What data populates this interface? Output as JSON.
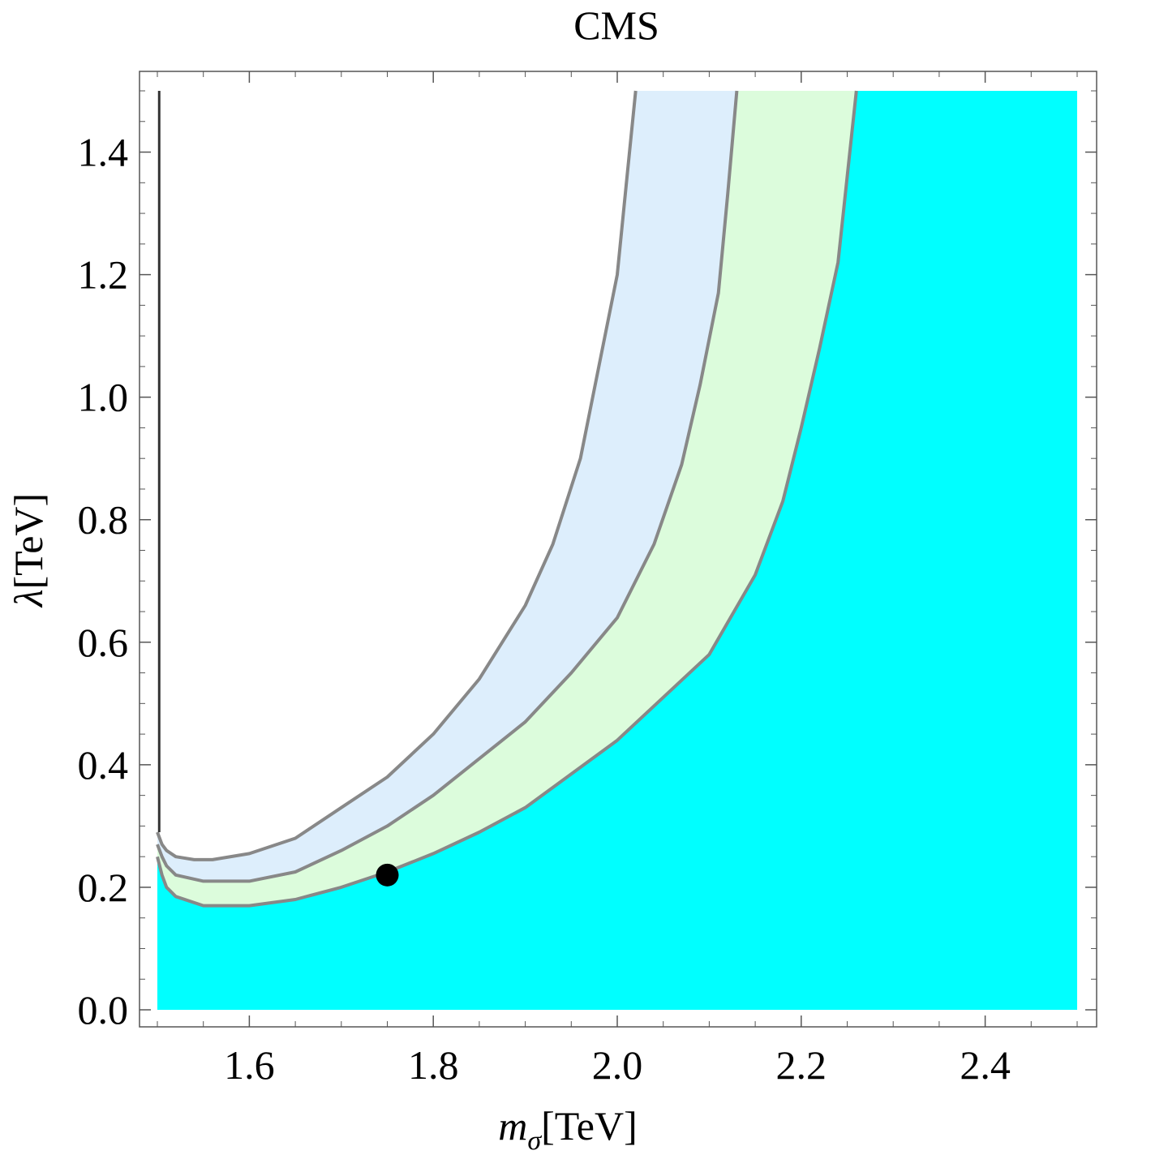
{
  "chart_data": {
    "type": "area",
    "title": "CMS",
    "xlabel": {
      "symbol": "m",
      "subscript": "σ",
      "unit": "[TeV]"
    },
    "ylabel": {
      "symbol": "λ",
      "unit": "[TeV]"
    },
    "xlim": [
      1.5,
      2.5
    ],
    "ylim": [
      0.0,
      1.5
    ],
    "x_ticks": [
      "1.6",
      "1.8",
      "2.0",
      "2.2",
      "2.4"
    ],
    "y_ticks": [
      "0.0",
      "0.2",
      "0.4",
      "0.6",
      "0.8",
      "1.0",
      "1.2",
      "1.4"
    ],
    "x_tick_values": [
      1.6,
      1.8,
      2.0,
      2.2,
      2.4
    ],
    "y_tick_values": [
      0.0,
      0.2,
      0.4,
      0.6,
      0.8,
      1.0,
      1.2,
      1.4
    ],
    "grid": false,
    "colors": {
      "outer_band": "#ddeefc",
      "middle_band": "#dcfcdc",
      "excluded": "#00ffff",
      "contour": "#888888",
      "point": "#000000"
    },
    "contours": [
      {
        "x": [
          1.5,
          1.505,
          1.51,
          1.52,
          1.54,
          1.56,
          1.6,
          1.65,
          1.7,
          1.75,
          1.8,
          1.85,
          1.9,
          1.93,
          1.96,
          1.98,
          2.0,
          2.01,
          2.02
        ],
        "y": [
          0.29,
          0.27,
          0.26,
          0.25,
          0.245,
          0.245,
          0.255,
          0.28,
          0.33,
          0.38,
          0.45,
          0.54,
          0.66,
          0.76,
          0.9,
          1.05,
          1.2,
          1.35,
          1.5
        ]
      },
      {
        "x": [
          1.5,
          1.505,
          1.51,
          1.52,
          1.55,
          1.6,
          1.65,
          1.7,
          1.75,
          1.8,
          1.85,
          1.9,
          1.95,
          2.0,
          2.04,
          2.07,
          2.09,
          2.11,
          2.12,
          2.13
        ],
        "y": [
          0.27,
          0.25,
          0.235,
          0.22,
          0.21,
          0.21,
          0.225,
          0.26,
          0.3,
          0.35,
          0.41,
          0.47,
          0.55,
          0.64,
          0.76,
          0.89,
          1.02,
          1.17,
          1.33,
          1.5
        ]
      },
      {
        "x": [
          1.5,
          1.505,
          1.51,
          1.52,
          1.55,
          1.6,
          1.65,
          1.7,
          1.75,
          1.8,
          1.85,
          1.9,
          1.95,
          2.0,
          2.05,
          2.1,
          2.15,
          2.18,
          2.2,
          2.22,
          2.24,
          2.25,
          2.26
        ],
        "y": [
          0.25,
          0.22,
          0.2,
          0.185,
          0.17,
          0.17,
          0.18,
          0.2,
          0.225,
          0.255,
          0.29,
          0.33,
          0.385,
          0.44,
          0.51,
          0.58,
          0.71,
          0.83,
          0.95,
          1.08,
          1.22,
          1.36,
          1.5
        ]
      }
    ],
    "vertical_line": {
      "x": 1.502,
      "y": [
        0.29,
        1.5
      ]
    },
    "point": {
      "x": 1.75,
      "y": 0.22
    }
  }
}
